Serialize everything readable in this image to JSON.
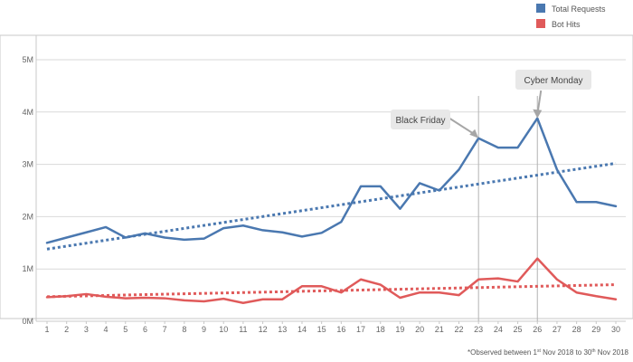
{
  "chart_data": {
    "type": "line",
    "x": [
      1,
      2,
      3,
      4,
      5,
      6,
      7,
      8,
      9,
      10,
      11,
      12,
      13,
      14,
      15,
      16,
      17,
      18,
      19,
      20,
      21,
      22,
      23,
      24,
      25,
      26,
      27,
      28,
      29,
      30
    ],
    "y_ticks": [
      "0M",
      "1M",
      "2M",
      "3M",
      "4M",
      "5M"
    ],
    "ylim": [
      0,
      5
    ],
    "grid": true,
    "legend_position": "top-right",
    "series": [
      {
        "name": "Total Requests",
        "color": "#4a78b0",
        "values": [
          1.5,
          1.6,
          1.7,
          1.8,
          1.6,
          1.68,
          1.6,
          1.56,
          1.58,
          1.78,
          1.83,
          1.74,
          1.7,
          1.62,
          1.69,
          1.9,
          2.58,
          2.58,
          2.15,
          2.64,
          2.5,
          2.9,
          3.5,
          3.32,
          3.32,
          3.88,
          2.9,
          2.28,
          2.28,
          2.2
        ],
        "trend": {
          "start": 1.38,
          "end": 3.02
        }
      },
      {
        "name": "Bot Hits",
        "color": "#e05a5a",
        "values": [
          0.46,
          0.48,
          0.52,
          0.47,
          0.44,
          0.45,
          0.44,
          0.4,
          0.38,
          0.43,
          0.35,
          0.42,
          0.42,
          0.67,
          0.67,
          0.55,
          0.8,
          0.7,
          0.45,
          0.55,
          0.55,
          0.5,
          0.8,
          0.82,
          0.76,
          1.2,
          0.8,
          0.55,
          0.48,
          0.42
        ],
        "trend": {
          "start": 0.47,
          "end": 0.7
        }
      }
    ],
    "annotations": [
      {
        "label": "Black Friday",
        "x": 23
      },
      {
        "label": "Cyber Monday",
        "x": 26
      }
    ],
    "footnote": {
      "prefix": "*Observed between 1",
      "sup1": "st",
      "middle": " Nov 2018 to 30",
      "sup2": "th",
      "suffix": " Nov 2018"
    }
  }
}
